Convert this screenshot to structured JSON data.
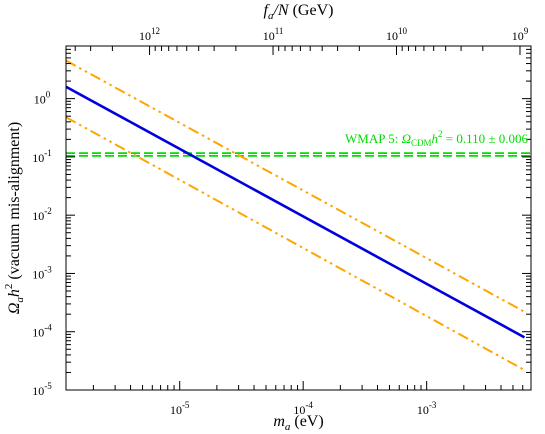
{
  "chart_data": {
    "type": "line",
    "xscale": "log",
    "yscale": "log",
    "xlim": [
      1.2e-06,
      0.007
    ],
    "ylim": [
      1e-05,
      8
    ],
    "grid": false,
    "x_ticks": [
      {
        "value": 1e-05,
        "base": "10",
        "exp": "-5"
      },
      {
        "value": 0.0001,
        "base": "10",
        "exp": "-4"
      },
      {
        "value": 0.001,
        "base": "10",
        "exp": "-3"
      }
    ],
    "y_ticks": [
      {
        "value": 1e-05,
        "base": "10",
        "exp": "-5"
      },
      {
        "value": 0.0001,
        "base": "10",
        "exp": "-4"
      },
      {
        "value": 0.001,
        "base": "10",
        "exp": "-3"
      },
      {
        "value": 0.01,
        "base": "10",
        "exp": "-2"
      },
      {
        "value": 0.1,
        "base": "10",
        "exp": "-1"
      },
      {
        "value": 1,
        "base": "10",
        "exp": "0"
      }
    ],
    "top_ticks": [
      {
        "value": 1000000000000.0,
        "base": "10",
        "exp": "12"
      },
      {
        "value": 100000000000.0,
        "base": "10",
        "exp": "11"
      },
      {
        "value": 10000000000.0,
        "base": "10",
        "exp": "10"
      },
      {
        "value": 1000000000.0,
        "base": "10",
        "exp": "9"
      }
    ],
    "top_axis_conversion_GeV_eV": 5700000.0,
    "xlabel": {
      "var": "m",
      "sub": "a",
      "unit": "(eV)"
    },
    "ylabel": {
      "var": "Ω",
      "sub": "a",
      "h": "h",
      "sup": "2",
      "unit": "(vacuum mis-alignment)"
    },
    "top_label": {
      "var": "f",
      "sub": "a",
      "rest": "/N",
      "unit": "(GeV)"
    },
    "series": [
      {
        "style": "solid",
        "color": "#0000dd",
        "x": [
          1.2e-06,
          0.0062
        ],
        "y": [
          1.6,
          8e-05
        ]
      },
      {
        "style": "dashdotdot",
        "color": "#ffa500",
        "x": [
          1.2e-06,
          0.0062
        ],
        "y": [
          4.5,
          0.00022
        ]
      },
      {
        "style": "dashdotdot",
        "color": "#ffa500",
        "x": [
          1.2e-06,
          0.0062
        ],
        "y": [
          0.48,
          2.2e-05
        ]
      }
    ],
    "bands": [
      {
        "style": "dashed",
        "color": "#00dd00",
        "y": 0.104
      },
      {
        "style": "dashed",
        "color": "#00dd00",
        "y": 0.116
      }
    ],
    "annotation": {
      "color": "#00dd00",
      "prefix": "WMAP 5:",
      "omega": "Ω",
      "omega_sub": "CDM",
      "h": "h",
      "h_sup": "2",
      "rest": "= 0.110 ± 0.006"
    }
  }
}
